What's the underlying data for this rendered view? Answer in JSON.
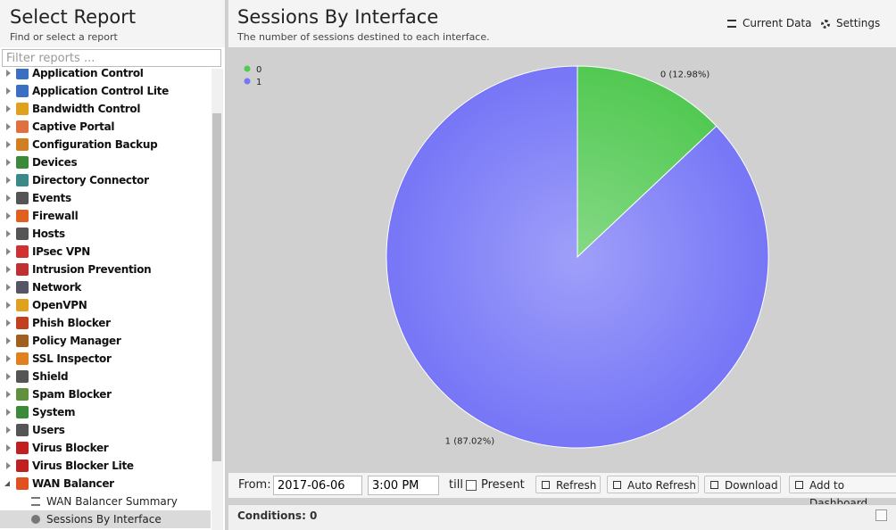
{
  "sidebar": {
    "title": "Select Report",
    "subtitle": "Find or select a report",
    "filter_placeholder": "Filter reports ...",
    "items": [
      "Application Control",
      "Application Control Lite",
      "Bandwidth Control",
      "Captive Portal",
      "Configuration Backup",
      "Devices",
      "Directory Connector",
      "Events",
      "Firewall",
      "Hosts",
      "IPsec VPN",
      "Intrusion Prevention",
      "Network",
      "OpenVPN",
      "Phish Blocker",
      "Policy Manager",
      "SSL Inspector",
      "Shield",
      "Spam Blocker",
      "System",
      "Users",
      "Virus Blocker",
      "Virus Blocker Lite",
      "WAN Balancer"
    ],
    "children": [
      "WAN Balancer Summary",
      "Sessions By Interface"
    ]
  },
  "header": {
    "title": "Sessions By Interface",
    "subtitle": "The number of sessions destined to each interface.",
    "buttons": [
      "Current Data",
      "Settings"
    ]
  },
  "chart_data": {
    "type": "pie",
    "categories": [
      "0",
      "1"
    ],
    "values": [
      12.98,
      87.02
    ],
    "value_labels": [
      "0 (12.98%)",
      "1 (87.02%)"
    ],
    "colors": [
      "#52c952",
      "#7676f7"
    ]
  },
  "toolbar": {
    "from_label": "From:",
    "date": "2017-06-06",
    "time": "3:00 PM",
    "till_label": "till",
    "present_label": "Present",
    "buttons": [
      "Refresh",
      "Auto Refresh",
      "Download",
      "Add to Dashboard"
    ]
  },
  "conditions": "Conditions: 0"
}
